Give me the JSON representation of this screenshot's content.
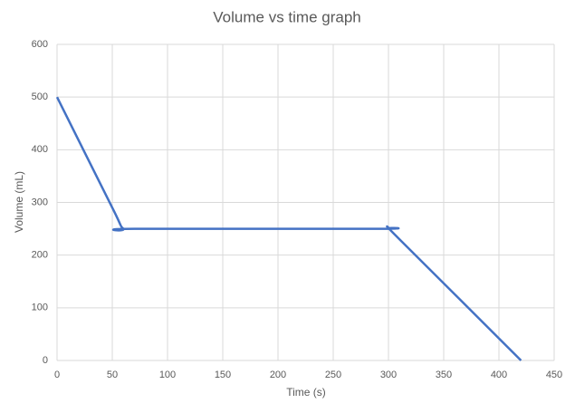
{
  "chart_data": {
    "type": "line",
    "title": "Volume vs time graph",
    "x_label": "Time (s)",
    "y_label": "Volume (mL)",
    "x": [
      0,
      50,
      60,
      70,
      290,
      300,
      310,
      420
    ],
    "series": [
      {
        "name": "Volume",
        "color": "#4472c4",
        "values": [
          500,
          290,
          250,
          250,
          250,
          250,
          230,
          0
        ]
      }
    ],
    "xlim": [
      0,
      450
    ],
    "xticks": [
      0,
      50,
      100,
      150,
      200,
      250,
      300,
      350,
      400,
      450
    ],
    "ylim": [
      0,
      600
    ],
    "yticks": [
      0,
      100,
      200,
      300,
      400,
      500,
      600
    ],
    "grid": true,
    "smooth": true
  }
}
